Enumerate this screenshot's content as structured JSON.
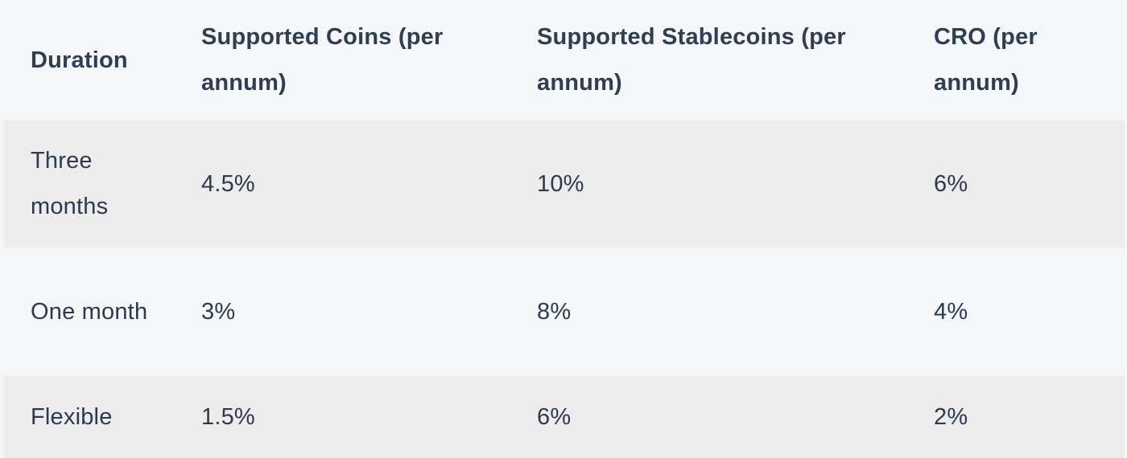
{
  "table": {
    "headers": [
      "Duration",
      "Supported Coins (per annum)",
      "Supported Stablecoins (per annum)",
      "CRO (per annum)"
    ],
    "rows": [
      [
        "Three months",
        "4.5%",
        "10%",
        "6%"
      ],
      [
        "One month",
        "3%",
        "8%",
        "4%"
      ],
      [
        "Flexible",
        "1.5%",
        "6%",
        "2%"
      ]
    ]
  },
  "colors": {
    "text": "#2b3a4d",
    "row_shaded": "#ececed",
    "row_light": "#f5f6f8"
  }
}
